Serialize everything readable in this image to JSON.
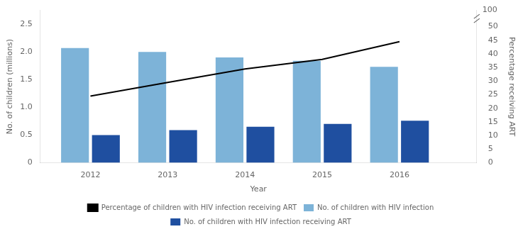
{
  "chart_data": {
    "type": "bar",
    "x": [
      2012,
      2013,
      2014,
      2015,
      2016
    ],
    "xlabel": "Year",
    "ylabel": "No. of children (millions)",
    "y2label": "Percentage receiving ART",
    "series": [
      {
        "name": "No. of children with HIV infection",
        "type": "bar",
        "color": "#7db3d8",
        "values": [
          2.07,
          2.0,
          1.9,
          1.84,
          1.73
        ]
      },
      {
        "name": "No. of children with HIV infection receiving ART",
        "type": "bar",
        "color": "#1f4fa0",
        "values": [
          0.5,
          0.59,
          0.65,
          0.7,
          0.76
        ]
      },
      {
        "name": "Percentage of children with HIV infection receiving ART",
        "type": "line",
        "color": "#000000",
        "axis": "y2",
        "values": [
          24.5,
          29.5,
          34.5,
          38.0,
          44.5
        ]
      }
    ],
    "xlim": [
      2011.35,
      2017.0
    ],
    "xticks": [
      2012,
      2013,
      2014,
      2015,
      2016
    ],
    "ylim": [
      0,
      2.75
    ],
    "yticks": [
      0,
      0.5,
      {
        "value": 1.0,
        "label": "1.0"
      },
      1.5,
      {
        "value": 2.0,
        "label": "2.0"
      },
      2.5
    ],
    "y2lim": [
      0,
      56
    ],
    "y2ticks": [
      0,
      5,
      10,
      15,
      20,
      25,
      30,
      35,
      40,
      45,
      50
    ],
    "annotations": [
      {
        "text": "100"
      }
    ],
    "grid": false,
    "legend": "bottom"
  }
}
